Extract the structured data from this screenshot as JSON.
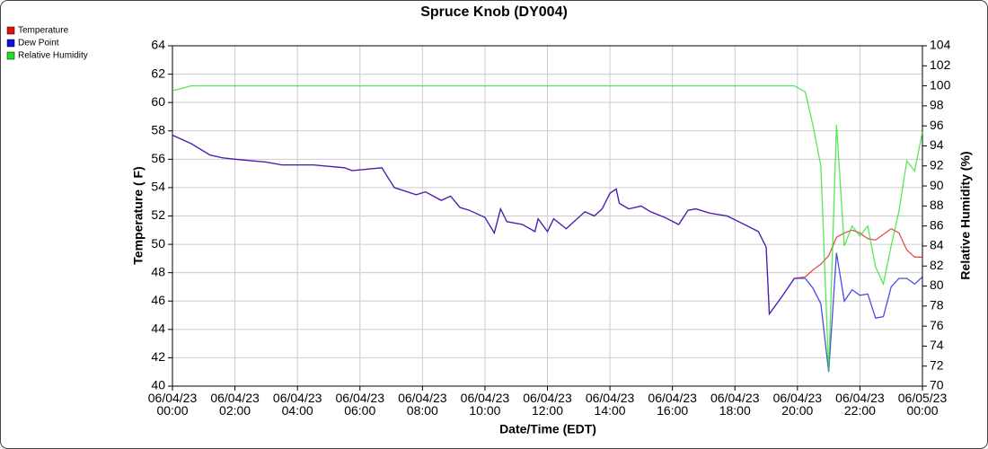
{
  "chart_data": {
    "type": "line",
    "title": "Spruce Knob (DY004)",
    "xlabel": "Date/Time (EDT)",
    "ylabel": "Temperature ( F)",
    "y2label": "Relative Humidity (%)",
    "x": [
      0,
      0.6,
      1.2,
      1.6,
      2.0,
      3.0,
      3.5,
      4.5,
      5.5,
      5.75,
      6.7,
      7.1,
      7.8,
      8.1,
      8.6,
      8.9,
      9.2,
      9.5,
      10.0,
      10.3,
      10.5,
      10.7,
      11.2,
      11.6,
      11.7,
      12.0,
      12.2,
      12.6,
      13.0,
      13.2,
      13.5,
      13.75,
      14.0,
      14.2,
      14.3,
      14.6,
      15.0,
      15.3,
      15.75,
      16.2,
      16.5,
      16.75,
      17.2,
      17.75,
      18.3,
      18.75,
      19.0,
      19.1,
      19.5,
      19.9,
      20.25,
      20.5,
      20.75,
      21.0,
      21.25,
      21.5,
      21.75,
      22.0,
      22.25,
      22.5,
      22.75,
      23.0,
      23.25,
      23.5,
      23.75,
      24.0
    ],
    "series": [
      {
        "name": "Temperature",
        "color": "#e01010",
        "values": [
          57.7,
          57.1,
          56.3,
          56.1,
          56.0,
          55.8,
          55.6,
          55.6,
          55.4,
          55.2,
          55.4,
          54.0,
          53.5,
          53.7,
          53.1,
          53.4,
          52.6,
          52.4,
          51.9,
          50.8,
          52.5,
          51.6,
          51.4,
          50.9,
          51.8,
          50.9,
          51.8,
          51.1,
          51.9,
          52.3,
          52.0,
          52.5,
          53.6,
          53.9,
          52.9,
          52.5,
          52.7,
          52.3,
          51.9,
          51.4,
          52.4,
          52.5,
          52.2,
          52.0,
          51.4,
          50.9,
          49.8,
          45.1,
          46.3,
          47.6,
          47.7,
          48.2,
          48.6,
          49.2,
          50.5,
          50.8,
          51.0,
          50.8,
          50.4,
          50.3,
          50.7,
          51.1,
          50.8,
          49.6,
          49.1,
          49.1
        ]
      },
      {
        "name": "Dew Point",
        "color": "#1010e0",
        "values": [
          57.7,
          57.1,
          56.3,
          56.1,
          56.0,
          55.8,
          55.6,
          55.6,
          55.4,
          55.2,
          55.4,
          54.0,
          53.5,
          53.7,
          53.1,
          53.4,
          52.6,
          52.4,
          51.9,
          50.8,
          52.5,
          51.6,
          51.4,
          50.9,
          51.8,
          50.9,
          51.8,
          51.1,
          51.9,
          52.3,
          52.0,
          52.5,
          53.6,
          53.9,
          52.9,
          52.5,
          52.7,
          52.3,
          51.9,
          51.4,
          52.4,
          52.5,
          52.2,
          52.0,
          51.4,
          50.9,
          49.8,
          45.1,
          46.3,
          47.6,
          47.6,
          46.9,
          45.8,
          41.0,
          49.4,
          46.0,
          46.8,
          46.4,
          46.5,
          44.8,
          44.9,
          47.0,
          47.6,
          47.6,
          47.2,
          47.7
        ]
      },
      {
        "name": "Relative Humidity",
        "color": "#22e022",
        "axis": "y2",
        "values": [
          99.5,
          100,
          100,
          100,
          100,
          100,
          100,
          100,
          100,
          100,
          100,
          100,
          100,
          100,
          100,
          100,
          100,
          100,
          100,
          100,
          100,
          100,
          100,
          100,
          100,
          100,
          100,
          100,
          100,
          100,
          100,
          100,
          100,
          100,
          100,
          100,
          100,
          100,
          100,
          100,
          100,
          100,
          100,
          100,
          100,
          100,
          100,
          100,
          100,
          100,
          99.4,
          96,
          92,
          71.5,
          96.1,
          84.0,
          86.0,
          85.0,
          86.0,
          81.9,
          80.2,
          84.0,
          87.5,
          92.5,
          91.5,
          95.4
        ]
      }
    ],
    "xlim": [
      0,
      24
    ],
    "xticks": [
      {
        "value": 0,
        "label": "06/04/23\n00:00"
      },
      {
        "value": 2,
        "label": "06/04/23\n02:00"
      },
      {
        "value": 4,
        "label": "06/04/23\n04:00"
      },
      {
        "value": 6,
        "label": "06/04/23\n06:00"
      },
      {
        "value": 8,
        "label": "06/04/23\n08:00"
      },
      {
        "value": 10,
        "label": "06/04/23\n10:00"
      },
      {
        "value": 12,
        "label": "06/04/23\n12:00"
      },
      {
        "value": 14,
        "label": "06/04/23\n14:00"
      },
      {
        "value": 16,
        "label": "06/04/23\n16:00"
      },
      {
        "value": 18,
        "label": "06/04/23\n18:00"
      },
      {
        "value": 20,
        "label": "06/04/23\n20:00"
      },
      {
        "value": 22,
        "label": "06/04/23\n22:00"
      },
      {
        "value": 24,
        "label": "06/05/23\n00:00"
      }
    ],
    "ylim": [
      40,
      64
    ],
    "yticks": [
      40,
      42,
      44,
      46,
      48,
      50,
      52,
      54,
      56,
      58,
      60,
      62,
      64
    ],
    "y2lim": [
      70,
      104
    ],
    "y2ticks": [
      70,
      72,
      74,
      76,
      78,
      80,
      82,
      84,
      86,
      88,
      90,
      92,
      94,
      96,
      98,
      100,
      102,
      104
    ],
    "grid": true,
    "legend": "top-left"
  }
}
